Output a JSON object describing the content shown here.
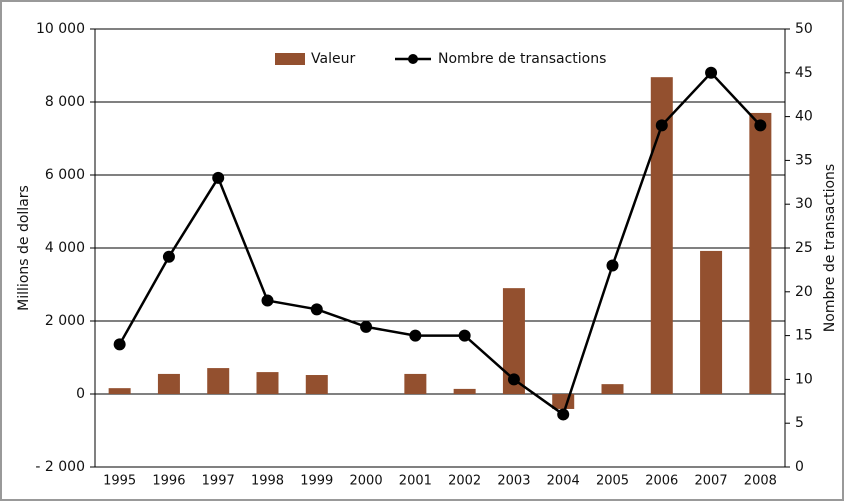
{
  "chart_data": {
    "type": "bar",
    "categories": [
      "1995",
      "1996",
      "1997",
      "1998",
      "1999",
      "2000",
      "2001",
      "2002",
      "2003",
      "2004",
      "2005",
      "2006",
      "2007",
      "2008"
    ],
    "series": [
      {
        "name": "Valeur",
        "type": "bar",
        "color": "#93502f",
        "values": [
          160,
          550,
          710,
          600,
          520,
          0,
          550,
          140,
          2900,
          -410,
          270,
          8680,
          3920,
          7700
        ]
      },
      {
        "name": "Nombre de transactions",
        "type": "line",
        "axis": "y2",
        "color": "#000000",
        "values": [
          14,
          24,
          33,
          19,
          18,
          16,
          15,
          15,
          10,
          6,
          23,
          39,
          45,
          39
        ]
      }
    ],
    "ylabel": "Millions de dollars",
    "y2label": "Nombre de transactions",
    "ylim": [
      -2000,
      10000
    ],
    "yticks": [
      {
        "value": -2000,
        "label": "- 2 000"
      },
      0,
      {
        "value": 2000,
        "label": "2 000"
      },
      {
        "value": 4000,
        "label": "4 000"
      },
      {
        "value": 6000,
        "label": "6 000"
      },
      {
        "value": 8000,
        "label": "8 000"
      },
      {
        "value": 10000,
        "label": "10 000"
      }
    ],
    "y2lim": [
      0,
      50
    ],
    "y2ticks": [
      0,
      5,
      10,
      15,
      20,
      25,
      30,
      35,
      40,
      45,
      50
    ],
    "grid": true,
    "legend": "top"
  }
}
